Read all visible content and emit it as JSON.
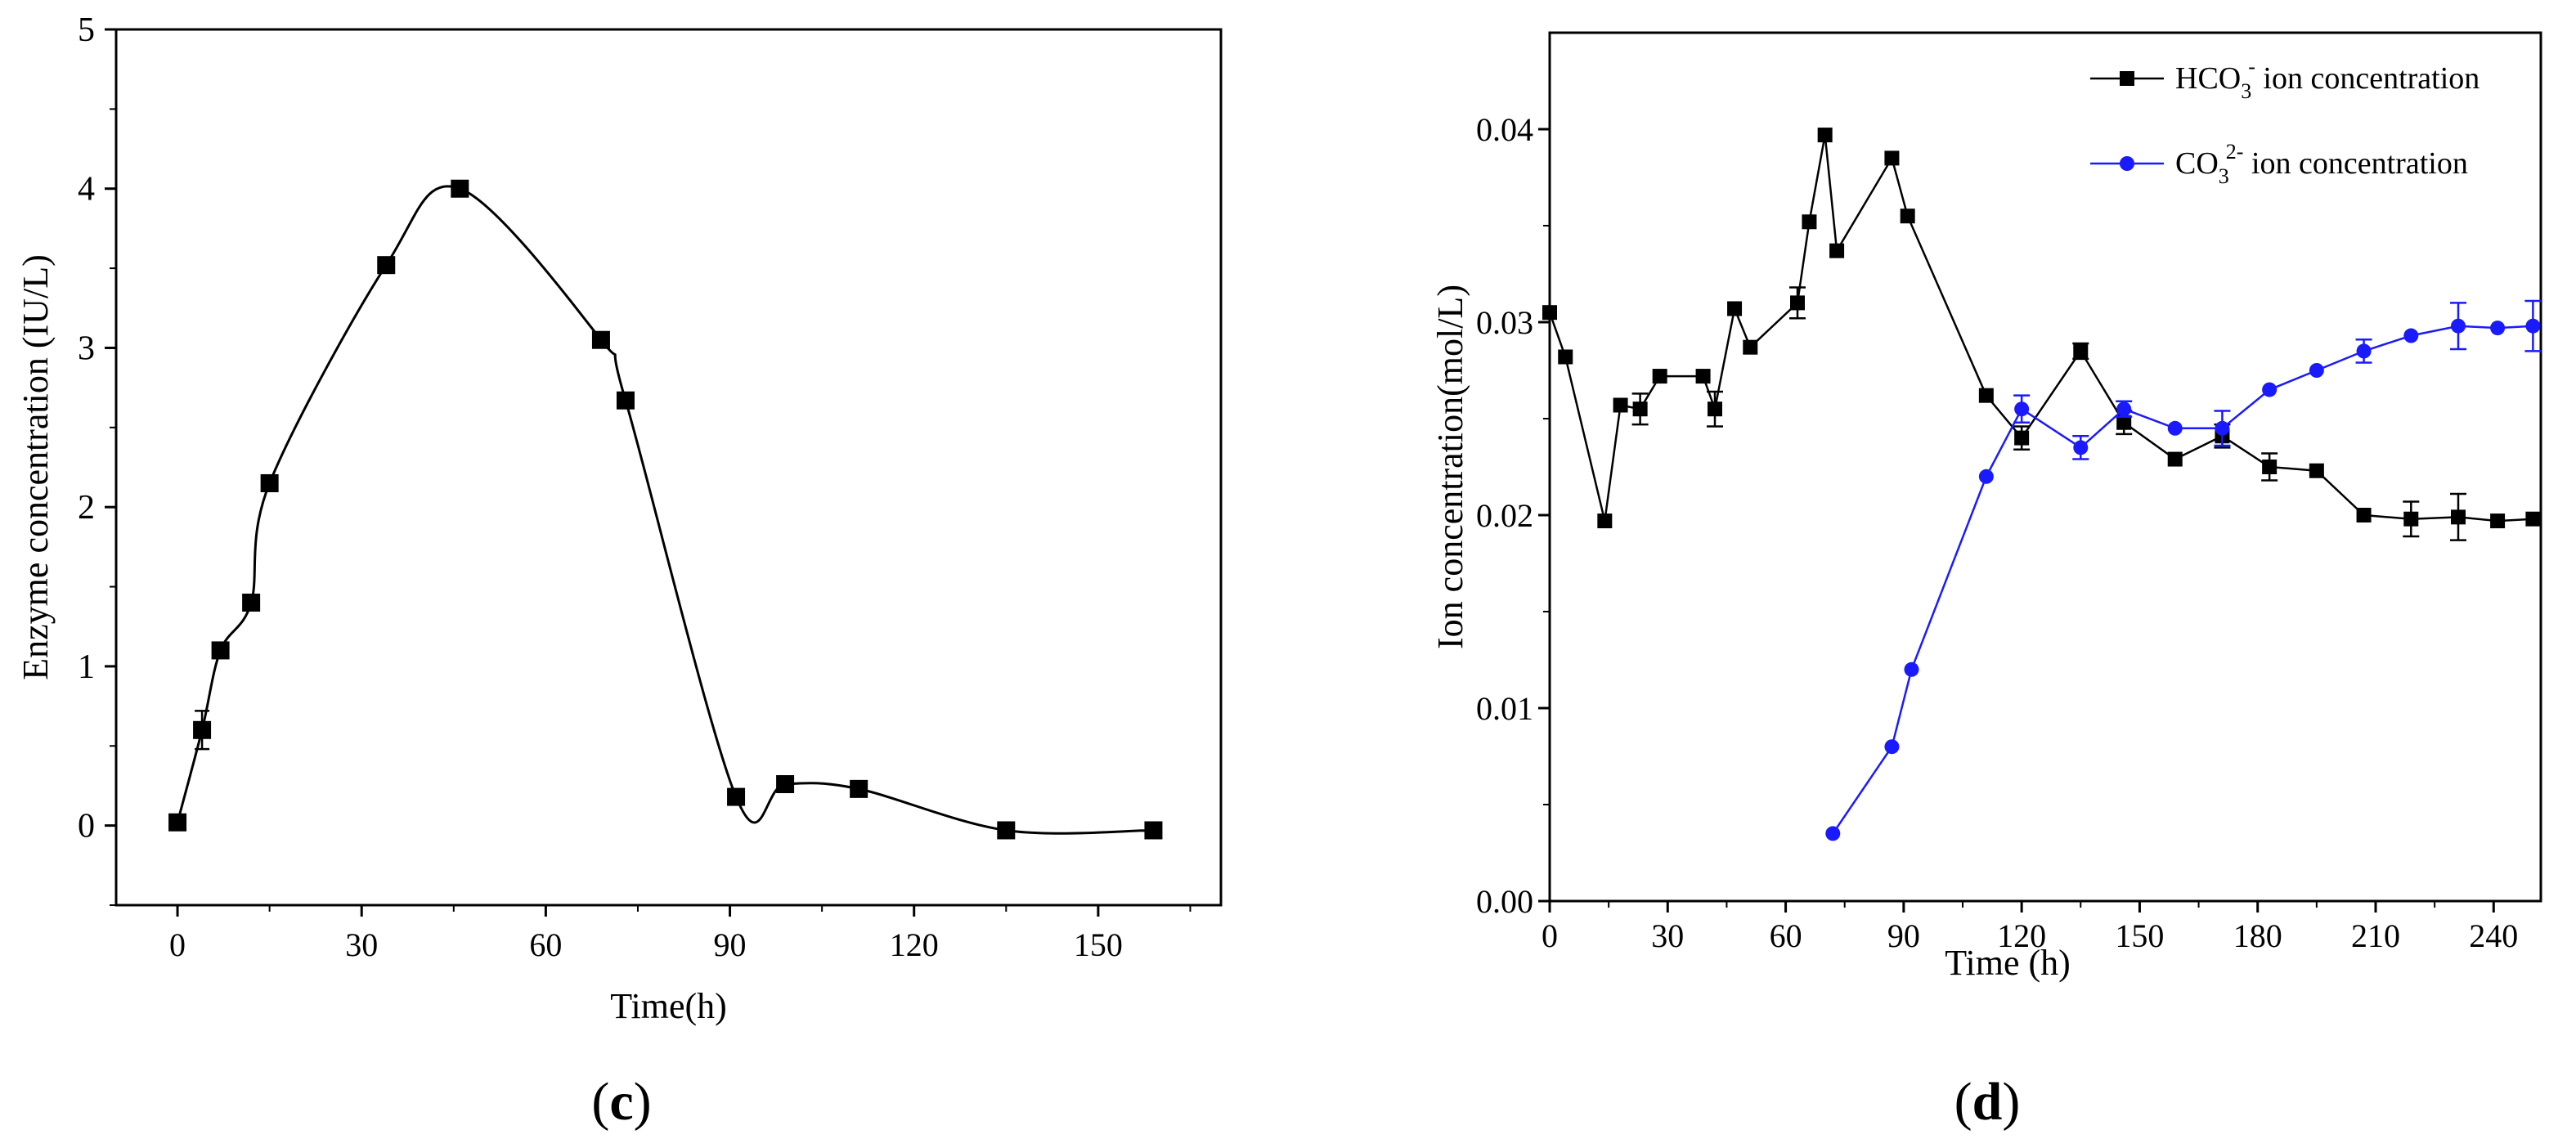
{
  "chart_data": [
    {
      "panel": "(c)",
      "type": "scatter",
      "xlabel": "Time(h)",
      "ylabel": "Enzyme concentration (IU/L)",
      "xlim": [
        -10,
        170
      ],
      "ylim": [
        -0.5,
        5
      ],
      "xticks": [
        0,
        30,
        60,
        90,
        120,
        150
      ],
      "yticks": [
        0,
        1,
        2,
        3,
        4,
        5
      ],
      "grid": false,
      "smooth_line": true,
      "series": [
        {
          "color": "#000000",
          "marker": "square",
          "x": [
            0,
            4,
            7,
            12,
            15,
            34,
            46,
            69,
            73,
            91,
            99,
            111,
            135,
            159
          ],
          "y": [
            0.02,
            0.6,
            1.1,
            1.4,
            2.15,
            3.52,
            4.0,
            3.05,
            2.67,
            0.18,
            0.26,
            0.23,
            -0.03,
            -0.03
          ],
          "err": [
            0,
            0.12,
            0,
            0,
            0,
            0,
            0,
            0,
            0,
            0,
            0,
            0,
            0,
            0
          ]
        }
      ]
    },
    {
      "panel": "(d)",
      "type": "line",
      "xlabel": "Time (h)",
      "ylabel": "Ion concentration(mol/L)",
      "xlim": [
        0,
        252
      ],
      "ylim": [
        0,
        0.045
      ],
      "xticks": [
        0,
        30,
        60,
        90,
        120,
        150,
        180,
        210,
        240
      ],
      "yticks": [
        0.0,
        0.01,
        0.02,
        0.03,
        0.04
      ],
      "ytick_labels": [
        "0.00",
        "0.01",
        "0.02",
        "0.03",
        "0.04"
      ],
      "grid": false,
      "legend_position": "top-right",
      "series": [
        {
          "name_main": "HCO",
          "name_sub": "3",
          "name_sup": "-",
          "name_rest": " ion concentration",
          "color": "#000000",
          "marker": "square",
          "x": [
            0,
            4,
            14,
            18,
            23,
            28,
            39,
            42,
            47,
            51,
            63,
            66,
            70,
            73,
            87,
            91,
            111,
            120,
            135,
            146,
            159,
            171,
            183,
            195,
            207,
            219,
            231,
            241,
            250
          ],
          "y": [
            0.0305,
            0.0282,
            0.0197,
            0.0257,
            0.0255,
            0.0272,
            0.0272,
            0.0255,
            0.0307,
            0.0287,
            0.031,
            0.0352,
            0.0397,
            0.0337,
            0.0385,
            0.0355,
            0.0262,
            0.024,
            0.0285,
            0.0248,
            0.0229,
            0.0241,
            0.0225,
            0.0223,
            0.02,
            0.0198,
            0.0199,
            0.0197,
            0.0198
          ],
          "err": [
            0,
            0,
            0,
            0,
            0.0008,
            0,
            0,
            0.0009,
            0,
            0,
            0.0008,
            0,
            0,
            0,
            0,
            0,
            0,
            0.0006,
            0.0004,
            0.0006,
            0,
            0.0006,
            0.0007,
            0,
            0,
            0.0009,
            0.0012,
            0,
            0
          ]
        },
        {
          "name_main": "CO",
          "name_sub": "3",
          "name_sup": "2-",
          "name_rest": " ion concentration",
          "color": "#1a1aff",
          "marker": "circle",
          "x": [
            72,
            87,
            92,
            111,
            120,
            135,
            146,
            159,
            171,
            183,
            195,
            207,
            219,
            231,
            241,
            250
          ],
          "y": [
            0.0035,
            0.008,
            0.012,
            0.022,
            0.0255,
            0.0235,
            0.0255,
            0.0245,
            0.0245,
            0.0265,
            0.0275,
            0.0285,
            0.0293,
            0.0298,
            0.0297,
            0.0298
          ],
          "err": [
            0,
            0,
            0,
            0,
            0.0007,
            0.0006,
            0.0004,
            0,
            0.0009,
            0,
            0,
            0.0006,
            0,
            0.0012,
            0,
            0.0013
          ]
        }
      ]
    }
  ],
  "labels": {
    "c": "c",
    "d": "d",
    "paren_open": "(",
    "paren_close": ")"
  }
}
